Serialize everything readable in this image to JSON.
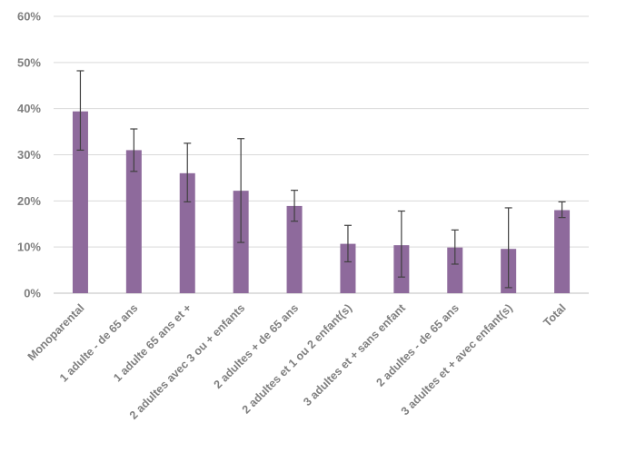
{
  "chart_data": {
    "type": "bar",
    "title": "",
    "xlabel": "",
    "ylabel": "",
    "ylim": [
      0,
      60
    ],
    "y_ticks": [
      0,
      10,
      20,
      30,
      40,
      50,
      60
    ],
    "y_tick_format": "%",
    "grid": true,
    "legend": "none",
    "bar_color": "#8e6a9c",
    "categories": [
      "Monoparental",
      "1 adulte - de 65 ans",
      "1 adulte 65 ans et +",
      "2 adultes avec 3 ou + enfants",
      "2 adultes + de 65 ans",
      "2 adultes et 1 ou 2 enfant(s)",
      "3 adultes et + sans enfant",
      "2 adultes - de 65 ans",
      "3 adultes et + avec enfant(s)",
      "Total"
    ],
    "values": [
      39.4,
      31.0,
      26.0,
      22.2,
      18.9,
      10.7,
      10.4,
      9.9,
      9.6,
      18.0
    ],
    "error_low": [
      31.0,
      26.4,
      19.8,
      11.0,
      15.6,
      6.8,
      3.5,
      6.3,
      1.2,
      16.4
    ],
    "error_high": [
      48.2,
      35.6,
      32.5,
      33.5,
      22.3,
      14.7,
      17.8,
      13.7,
      18.5,
      19.8
    ]
  }
}
